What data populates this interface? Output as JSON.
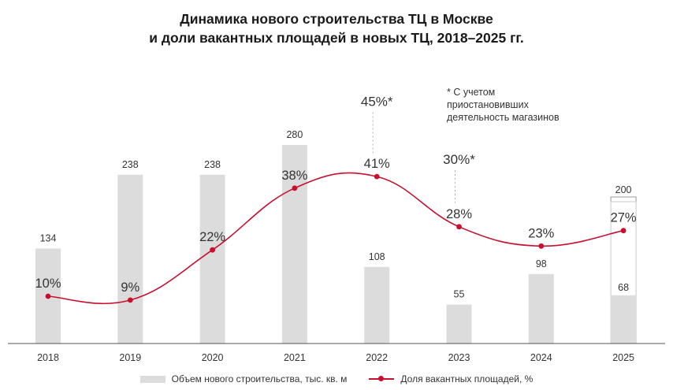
{
  "title_line1": "Динамика нового строительства ТЦ в Москве",
  "title_line2": "и доли вакантных площадей в новых ТЦ, 2018–2025 гг.",
  "footnote": {
    "line1": "* С учетом",
    "line2": "приостановивших",
    "line3": "деятельность магазинов"
  },
  "colors": {
    "bar": "#dcdcdc",
    "line": "#c8102e",
    "text": "#333333",
    "axis": "#555555",
    "dashed": "#b0b0b0"
  },
  "legend": {
    "bars_label": "Объем нового строительства, тыс. кв. м",
    "line_label": "Доля вакантных площадей, %"
  },
  "chart_data": {
    "type": "bar",
    "title": "Динамика нового строительства ТЦ в Москве и доли вакантных площадей в новых ТЦ, 2018–2025 гг.",
    "categories": [
      "2018",
      "2019",
      "2020",
      "2021",
      "2022",
      "2023",
      "2024",
      "2025"
    ],
    "series": [
      {
        "name": "Объем нового строительства, тыс. кв. м",
        "type": "bar",
        "values": [
          134,
          238,
          238,
          280,
          108,
          55,
          98,
          68
        ],
        "labels": [
          "134",
          "238",
          "238",
          "280",
          "108",
          "55",
          "98",
          "68"
        ],
        "forecast_totals": [
          null,
          null,
          null,
          null,
          null,
          null,
          null,
          200
        ],
        "forecast_labels": [
          "",
          "",
          "",
          "",
          "",
          "",
          "",
          "200"
        ]
      },
      {
        "name": "Доля вакантных площадей, %",
        "type": "line",
        "values": [
          10,
          9,
          22,
          38,
          41,
          28,
          23,
          27
        ],
        "labels": [
          "10%",
          "9%",
          "22%",
          "38%",
          "41%",
          "28%",
          "23%",
          "27%"
        ]
      }
    ],
    "alt_values": [
      {
        "category": "2022",
        "value": 45,
        "label": "45%*"
      },
      {
        "category": "2023",
        "value": 30,
        "label": "30%*"
      }
    ],
    "xlabel": "",
    "ylabel": "",
    "bar_ylim": [
      0,
      300
    ],
    "line_ylim": [
      0,
      50
    ],
    "legend_position": "bottom"
  }
}
